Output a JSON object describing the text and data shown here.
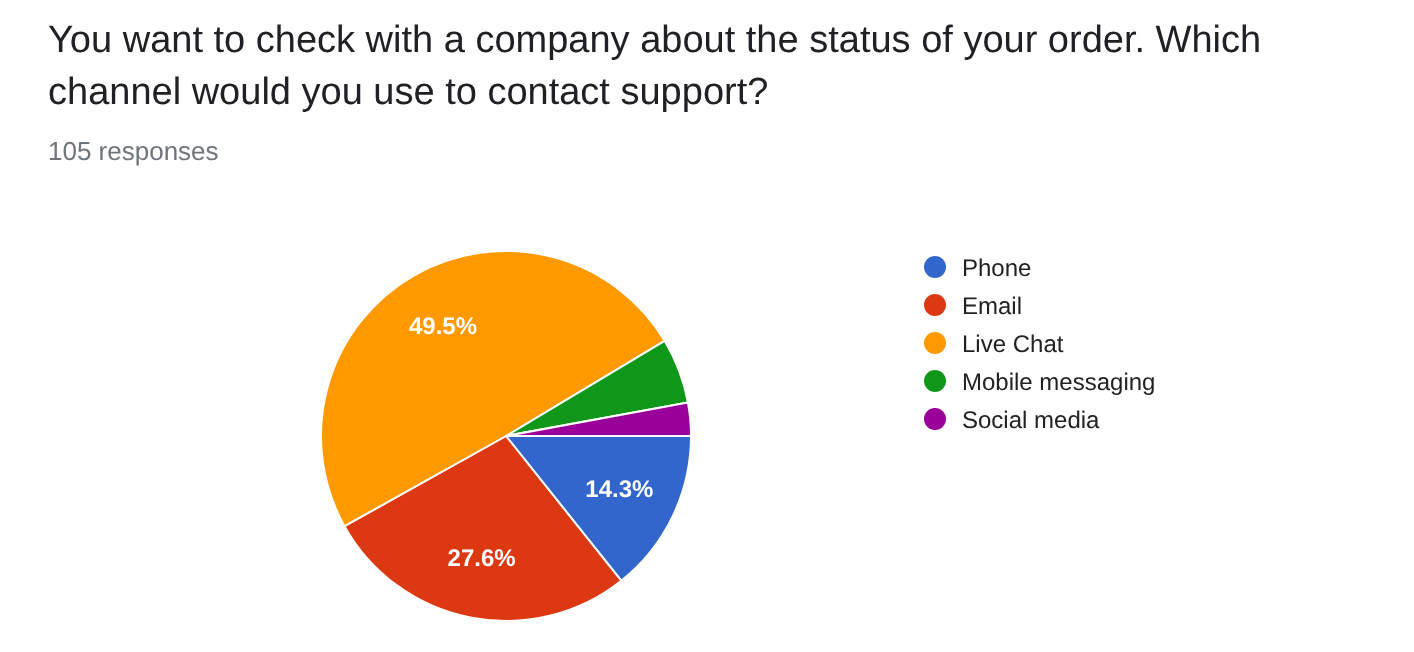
{
  "chart_data": {
    "type": "pie",
    "title": "You want to check with a company about the status of your order. Which channel would you use to contact support?",
    "subtitle": "105 responses",
    "categories": [
      "Phone",
      "Email",
      "Live Chat",
      "Mobile messaging",
      "Social media"
    ],
    "values": [
      14.3,
      27.6,
      49.5,
      5.7,
      2.9
    ],
    "colors": [
      "#3366cc",
      "#dc3912",
      "#ff9900",
      "#109618",
      "#990099"
    ],
    "value_labels": [
      "14.3%",
      "27.6%",
      "49.5%",
      null,
      null
    ],
    "legend": "right"
  }
}
